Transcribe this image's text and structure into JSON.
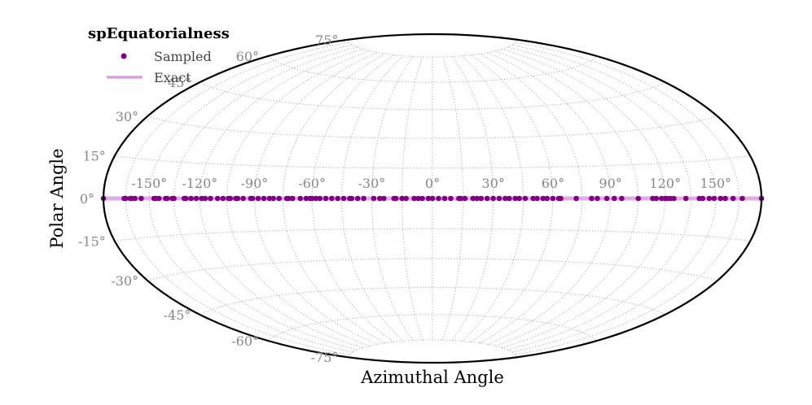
{
  "chart_data": {
    "type": "scatter",
    "projection": "hammer",
    "title": "",
    "xlabel": "Azimuthal Angle",
    "ylabel": "Polar Angle",
    "xlim": [
      -180,
      180
    ],
    "ylim": [
      -90,
      90
    ],
    "grid": true,
    "legend": {
      "title": "spEquatorialness",
      "placement": "top-left",
      "entries": [
        {
          "label": "Sampled",
          "marker": "dot",
          "color": "#800080"
        },
        {
          "label": "Exact",
          "marker": "line",
          "color": "#d9a0e0"
        }
      ]
    },
    "x_ticks": [
      -150,
      -120,
      -90,
      -60,
      -30,
      0,
      30,
      60,
      90,
      120,
      150
    ],
    "x_tick_labels": [
      "-150°",
      "-120°",
      "-90°",
      "-60°",
      "-30°",
      "0°",
      "30°",
      "60°",
      "90°",
      "120°",
      "150°"
    ],
    "y_ticks": [
      75,
      60,
      45,
      30,
      15,
      0,
      -15,
      -30,
      -45,
      -60,
      -75
    ],
    "y_tick_labels": [
      "75°",
      "60°",
      "45°",
      "30°",
      "15°",
      "0°",
      "-15°",
      "-30°",
      "-45°",
      "-60°",
      "-75°"
    ],
    "series": [
      {
        "name": "Sampled",
        "kind": "points",
        "color": "#800080",
        "y": 0,
        "x": [
          -180,
          -166,
          -165,
          -162,
          -161,
          -159,
          -155,
          -147,
          -146,
          -144,
          -140,
          -139,
          -136,
          -135,
          -129,
          -128,
          -125,
          -122,
          -119,
          -117,
          -114,
          -110,
          -107,
          -104,
          -103,
          -100,
          -99,
          -96,
          -92,
          -91,
          -88,
          -85,
          -82,
          -80,
          -77,
          -73,
          -72,
          -70,
          -66,
          -63,
          -61,
          -60,
          -58,
          -56,
          -53,
          -50,
          -47,
          -44,
          -41,
          -40,
          -37,
          -34,
          -29,
          -26,
          -24,
          -19,
          -18,
          -15,
          -13,
          -9,
          -7,
          -5,
          -2,
          0,
          3,
          6,
          9,
          13,
          14,
          16,
          20,
          22,
          24,
          27,
          30,
          33,
          36,
          38,
          41,
          43,
          46,
          50,
          52,
          55,
          57,
          60,
          63,
          64,
          72,
          80,
          83,
          88,
          92,
          96,
          105,
          113,
          115,
          118,
          120,
          121,
          123,
          125,
          132,
          140,
          142,
          146,
          149,
          153,
          156,
          161,
          167,
          180
        ]
      },
      {
        "name": "Exact",
        "kind": "line",
        "color": "#d9a0e0",
        "x": [
          -180,
          180
        ],
        "y": [
          0,
          0
        ]
      }
    ]
  }
}
